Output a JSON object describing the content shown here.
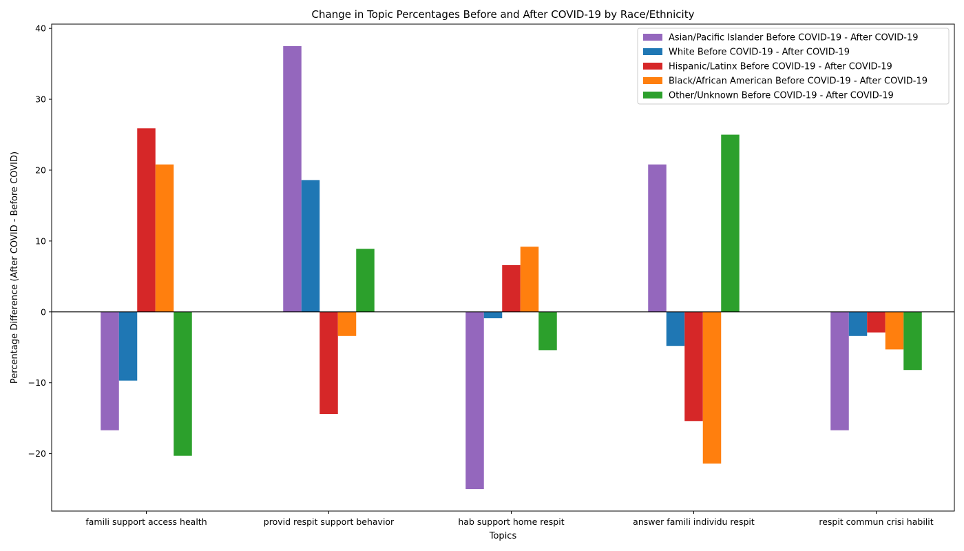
{
  "chart_data": {
    "type": "bar",
    "title": "Change in Topic Percentages Before and After COVID-19 by Race/Ethnicity",
    "xlabel": "Topics",
    "ylabel": "Percentage Difference (After COVID - Before COVID)",
    "categories": [
      "famili support access health",
      "provid respit support behavior",
      "hab support home respit",
      "answer famili individu respit",
      "respit commun crisi habilit"
    ],
    "series": [
      {
        "name": "Asian/Pacific Islander Before COVID-19 - After COVID-19",
        "color": "#9467bd",
        "values": [
          -16.7,
          37.5,
          -25.0,
          20.8,
          -16.7
        ]
      },
      {
        "name": "White Before COVID-19 - After COVID-19",
        "color": "#1f77b4",
        "values": [
          -9.7,
          18.6,
          -0.9,
          -4.8,
          -3.4
        ]
      },
      {
        "name": "Hispanic/Latinx Before COVID-19 - After COVID-19",
        "color": "#d62728",
        "values": [
          25.9,
          -14.4,
          6.6,
          -15.4,
          -2.9
        ]
      },
      {
        "name": "Black/African American Before COVID-19 - After COVID-19",
        "color": "#ff7f0e",
        "values": [
          20.8,
          -3.4,
          9.2,
          -21.4,
          -5.3
        ]
      },
      {
        "name": "Other/Unknown Before COVID-19 - After COVID-19",
        "color": "#2ca02c",
        "values": [
          -20.3,
          8.9,
          -5.4,
          25.0,
          -8.2
        ]
      }
    ],
    "ylim": [
      -28.1,
      40.6
    ],
    "yticks": [
      -20,
      -10,
      0,
      10,
      20,
      30,
      40
    ],
    "ytick_labels": [
      "−20",
      "−10",
      "0",
      "10",
      "20",
      "30",
      "40"
    ],
    "grid": false,
    "legend_position": "top-right"
  }
}
